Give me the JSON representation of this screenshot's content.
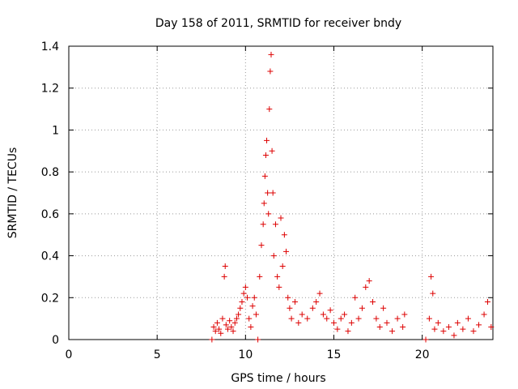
{
  "chart_data": {
    "type": "scatter",
    "title": "Day 158 of 2011, SRMTID for receiver bndy",
    "xlabel": "GPS time / hours",
    "ylabel": "SRMTID / TECUs",
    "xlim": [
      0,
      24
    ],
    "ylim": [
      0,
      1.4
    ],
    "xticks": [
      0,
      5,
      10,
      15,
      20
    ],
    "xtick_labels": [
      "0",
      "5",
      "10",
      "15",
      "20"
    ],
    "yticks": [
      0,
      0.2,
      0.4,
      0.6,
      0.8,
      1.0,
      1.2,
      1.4
    ],
    "ytick_labels": [
      "0",
      "0.2",
      "0.4",
      "0.6",
      "0.8",
      "1",
      "1.2",
      "1.4"
    ],
    "grid": true,
    "marker": "+",
    "color": "#dd0000",
    "series": [
      {
        "name": "SRMTID",
        "points": [
          [
            8.1,
            0.0
          ],
          [
            8.2,
            0.06
          ],
          [
            8.3,
            0.04
          ],
          [
            8.4,
            0.08
          ],
          [
            8.5,
            0.05
          ],
          [
            8.6,
            0.03
          ],
          [
            8.7,
            0.1
          ],
          [
            8.8,
            0.3
          ],
          [
            8.85,
            0.35
          ],
          [
            8.9,
            0.07
          ],
          [
            9.0,
            0.05
          ],
          [
            9.1,
            0.09
          ],
          [
            9.2,
            0.06
          ],
          [
            9.3,
            0.04
          ],
          [
            9.4,
            0.08
          ],
          [
            9.5,
            0.1
          ],
          [
            9.6,
            0.12
          ],
          [
            9.7,
            0.15
          ],
          [
            9.8,
            0.18
          ],
          [
            9.9,
            0.22
          ],
          [
            10.0,
            0.25
          ],
          [
            10.1,
            0.2
          ],
          [
            10.2,
            0.1
          ],
          [
            10.3,
            0.06
          ],
          [
            10.4,
            0.16
          ],
          [
            10.5,
            0.2
          ],
          [
            10.6,
            0.12
          ],
          [
            10.7,
            0.0
          ],
          [
            10.8,
            0.3
          ],
          [
            10.9,
            0.45
          ],
          [
            11.0,
            0.55
          ],
          [
            11.05,
            0.65
          ],
          [
            11.1,
            0.78
          ],
          [
            11.15,
            0.88
          ],
          [
            11.2,
            0.95
          ],
          [
            11.25,
            0.7
          ],
          [
            11.3,
            0.6
          ],
          [
            11.35,
            1.1
          ],
          [
            11.4,
            1.28
          ],
          [
            11.45,
            1.36
          ],
          [
            11.5,
            0.9
          ],
          [
            11.55,
            0.7
          ],
          [
            11.6,
            0.4
          ],
          [
            11.7,
            0.55
          ],
          [
            11.8,
            0.3
          ],
          [
            11.9,
            0.25
          ],
          [
            12.0,
            0.58
          ],
          [
            12.1,
            0.35
          ],
          [
            12.2,
            0.5
          ],
          [
            12.3,
            0.42
          ],
          [
            12.4,
            0.2
          ],
          [
            12.5,
            0.15
          ],
          [
            12.6,
            0.1
          ],
          [
            12.8,
            0.18
          ],
          [
            13.0,
            0.08
          ],
          [
            13.2,
            0.12
          ],
          [
            13.5,
            0.1
          ],
          [
            13.8,
            0.15
          ],
          [
            14.0,
            0.18
          ],
          [
            14.2,
            0.22
          ],
          [
            14.4,
            0.12
          ],
          [
            14.6,
            0.1
          ],
          [
            14.8,
            0.14
          ],
          [
            15.0,
            0.08
          ],
          [
            15.2,
            0.05
          ],
          [
            15.4,
            0.1
          ],
          [
            15.6,
            0.12
          ],
          [
            15.8,
            0.04
          ],
          [
            16.0,
            0.08
          ],
          [
            16.2,
            0.2
          ],
          [
            16.4,
            0.1
          ],
          [
            16.6,
            0.15
          ],
          [
            16.8,
            0.25
          ],
          [
            17.0,
            0.28
          ],
          [
            17.2,
            0.18
          ],
          [
            17.4,
            0.1
          ],
          [
            17.6,
            0.06
          ],
          [
            17.8,
            0.15
          ],
          [
            18.0,
            0.08
          ],
          [
            18.3,
            0.04
          ],
          [
            18.6,
            0.1
          ],
          [
            18.9,
            0.06
          ],
          [
            19.0,
            0.12
          ],
          [
            20.2,
            0.0
          ],
          [
            20.4,
            0.1
          ],
          [
            20.5,
            0.3
          ],
          [
            20.6,
            0.22
          ],
          [
            20.7,
            0.05
          ],
          [
            20.9,
            0.08
          ],
          [
            21.2,
            0.04
          ],
          [
            21.5,
            0.06
          ],
          [
            21.8,
            0.02
          ],
          [
            22.0,
            0.08
          ],
          [
            22.3,
            0.05
          ],
          [
            22.6,
            0.1
          ],
          [
            22.9,
            0.04
          ],
          [
            23.2,
            0.07
          ],
          [
            23.5,
            0.12
          ],
          [
            23.7,
            0.18
          ],
          [
            23.9,
            0.06
          ]
        ]
      }
    ]
  }
}
